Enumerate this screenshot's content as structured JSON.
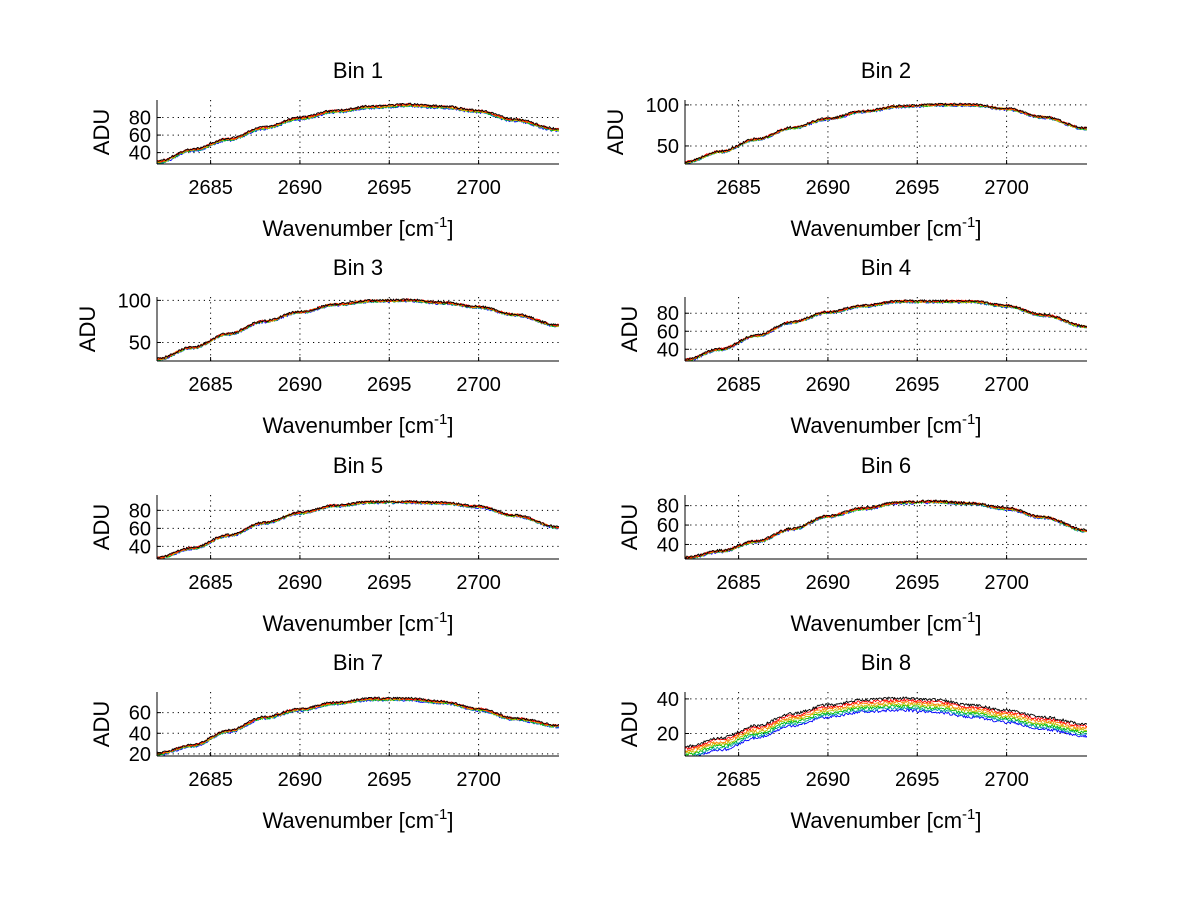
{
  "figure": {
    "background": "#ffffff",
    "series_colors": [
      "#0000ff",
      "#00a0a0",
      "#00c000",
      "#c0c000",
      "#ff8000",
      "#ff0000",
      "#000000"
    ]
  },
  "chart_data": [
    {
      "type": "line",
      "title": "Bin 1",
      "xlabel": "Wavenumber [cm",
      "xlabel_sup": "-1",
      "xlabel_end": "]",
      "ylabel": "ADU",
      "xlim": [
        2682,
        2704.5
      ],
      "ylim": [
        27,
        100
      ],
      "xticks": [
        2685,
        2690,
        2695,
        2700
      ],
      "yticks": [
        40,
        60,
        80
      ],
      "grid": true,
      "curve": {
        "x": [
          2682,
          2684,
          2686,
          2688,
          2690,
          2692,
          2694,
          2696,
          2698,
          2700,
          2702,
          2704.5
        ],
        "y": [
          29,
          43,
          55,
          68,
          79,
          87,
          92,
          94,
          92,
          87,
          77,
          66
        ]
      },
      "series_count": 7,
      "series_spread": 1.2,
      "noise": 1.3
    },
    {
      "type": "line",
      "title": "Bin 2",
      "xlabel": "Wavenumber [cm",
      "xlabel_sup": "-1",
      "xlabel_end": "]",
      "ylabel": "ADU",
      "xlim": [
        2682,
        2704.5
      ],
      "ylim": [
        28,
        106
      ],
      "xticks": [
        2685,
        2690,
        2695,
        2700
      ],
      "yticks": [
        50,
        100
      ],
      "grid": true,
      "curve": {
        "x": [
          2682,
          2684,
          2686,
          2688,
          2690,
          2692,
          2694,
          2696,
          2698,
          2700,
          2702,
          2704.5
        ],
        "y": [
          30,
          43,
          58,
          72,
          83,
          92,
          98,
          100,
          100,
          95,
          85,
          71
        ]
      },
      "series_count": 7,
      "series_spread": 0.8,
      "noise": 1.4
    },
    {
      "type": "line",
      "title": "Bin 3",
      "xlabel": "Wavenumber [cm",
      "xlabel_sup": "-1",
      "xlabel_end": "]",
      "ylabel": "ADU",
      "xlim": [
        2682,
        2704.5
      ],
      "ylim": [
        28,
        104
      ],
      "xticks": [
        2685,
        2690,
        2695,
        2700
      ],
      "yticks": [
        50,
        100
      ],
      "grid": true,
      "curve": {
        "x": [
          2682,
          2684,
          2686,
          2688,
          2690,
          2692,
          2694,
          2696,
          2698,
          2700,
          2702,
          2704.5
        ],
        "y": [
          30,
          44,
          60,
          75,
          86,
          95,
          99,
          100,
          97,
          92,
          83,
          70
        ]
      },
      "series_count": 7,
      "series_spread": 0.8,
      "noise": 1.4
    },
    {
      "type": "line",
      "title": "Bin 4",
      "xlabel": "Wavenumber [cm",
      "xlabel_sup": "-1",
      "xlabel_end": "]",
      "ylabel": "ADU",
      "xlim": [
        2682,
        2704.5
      ],
      "ylim": [
        27,
        98
      ],
      "xticks": [
        2685,
        2690,
        2695,
        2700
      ],
      "yticks": [
        40,
        60,
        80
      ],
      "grid": true,
      "curve": {
        "x": [
          2682,
          2684,
          2686,
          2688,
          2690,
          2692,
          2694,
          2696,
          2698,
          2700,
          2702,
          2704.5
        ],
        "y": [
          28,
          40,
          55,
          70,
          81,
          88,
          93,
          93,
          93,
          88,
          78,
          65
        ]
      },
      "series_count": 7,
      "series_spread": 0.8,
      "noise": 1.3
    },
    {
      "type": "line",
      "title": "Bin 5",
      "xlabel": "Wavenumber [cm",
      "xlabel_sup": "-1",
      "xlabel_end": "]",
      "ylabel": "ADU",
      "xlim": [
        2682,
        2704.5
      ],
      "ylim": [
        26,
        97
      ],
      "xticks": [
        2685,
        2690,
        2695,
        2700
      ],
      "yticks": [
        40,
        60,
        80
      ],
      "grid": true,
      "curve": {
        "x": [
          2682,
          2684,
          2686,
          2688,
          2690,
          2692,
          2694,
          2696,
          2698,
          2700,
          2702,
          2704.5
        ],
        "y": [
          27,
          38,
          52,
          66,
          77,
          85,
          89,
          89,
          88,
          84,
          74,
          61
        ]
      },
      "series_count": 7,
      "series_spread": 0.8,
      "noise": 1.3
    },
    {
      "type": "line",
      "title": "Bin 6",
      "xlabel": "Wavenumber [cm",
      "xlabel_sup": "-1",
      "xlabel_end": "]",
      "ylabel": "ADU",
      "xlim": [
        2682,
        2704.5
      ],
      "ylim": [
        25,
        91
      ],
      "xticks": [
        2685,
        2690,
        2695,
        2700
      ],
      "yticks": [
        40,
        60,
        80
      ],
      "grid": true,
      "curve": {
        "x": [
          2682,
          2684,
          2686,
          2688,
          2690,
          2692,
          2694,
          2696,
          2698,
          2700,
          2702,
          2704.5
        ],
        "y": [
          26,
          33,
          43,
          56,
          69,
          77,
          83,
          84,
          82,
          77,
          68,
          54
        ]
      },
      "series_count": 7,
      "series_spread": 0.8,
      "noise": 1.3
    },
    {
      "type": "line",
      "title": "Bin 7",
      "xlabel": "Wavenumber [cm",
      "xlabel_sup": "-1",
      "xlabel_end": "]",
      "ylabel": "ADU",
      "xlim": [
        2682,
        2704.5
      ],
      "ylim": [
        18,
        80
      ],
      "xticks": [
        2685,
        2690,
        2695,
        2700
      ],
      "yticks": [
        20,
        40,
        60
      ],
      "grid": true,
      "curve": {
        "x": [
          2682,
          2684,
          2686,
          2688,
          2690,
          2692,
          2694,
          2696,
          2698,
          2700,
          2702,
          2704.5
        ],
        "y": [
          20,
          28,
          42,
          55,
          63,
          69,
          73,
          73,
          70,
          63,
          54,
          47
        ]
      },
      "series_count": 7,
      "series_spread": 1.0,
      "noise": 1.1
    },
    {
      "type": "line",
      "title": "Bin 8",
      "xlabel": "Wavenumber [cm",
      "xlabel_sup": "-1",
      "xlabel_end": "]",
      "ylabel": "ADU",
      "xlim": [
        2682,
        2704.5
      ],
      "ylim": [
        7,
        44
      ],
      "xticks": [
        2685,
        2690,
        2695,
        2700
      ],
      "yticks": [
        20,
        40
      ],
      "grid": true,
      "curve": {
        "x": [
          2682,
          2684,
          2686,
          2688,
          2690,
          2692,
          2694,
          2696,
          2698,
          2700,
          2702,
          2704.5
        ],
        "y": [
          9,
          14,
          21,
          28,
          33,
          36,
          37,
          36,
          33,
          30,
          26,
          22
        ]
      },
      "series_count": 7,
      "series_spread": 3.5,
      "noise": 0.8
    }
  ]
}
